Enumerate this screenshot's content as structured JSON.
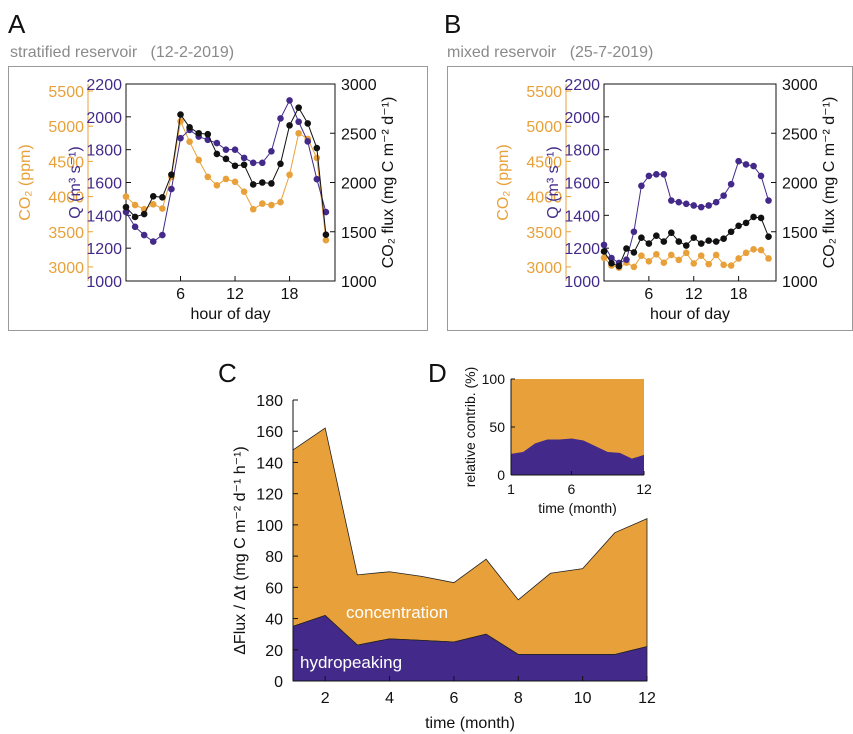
{
  "colors": {
    "co2": "#e8a13a",
    "q": "#432a8a",
    "flux": "#111111",
    "frame": "#9a9a9a",
    "subtitle": "#8a8a8a"
  },
  "labels": {
    "A": "A",
    "B": "B",
    "C": "C",
    "D": "D",
    "A_subtitle": "stratified reservoir   (12-2-2019)",
    "B_subtitle": "mixed reservoir   (25-7-2019)",
    "co2_axis": "CO₂ (ppm)",
    "q_axis": "Q (m³ s⁻¹)",
    "flux_axis": "CO₂ flux (mg C m⁻² d⁻¹)",
    "hour_axis": "hour of day",
    "c_yaxis": "ΔFlux / Δt  (mg C m⁻² d⁻¹ h⁻¹)",
    "c_xaxis": "time (month)",
    "concentration": "concentration",
    "hydropeaking": "hydropeaking",
    "d_yaxis": "relative contrib. (%)",
    "d_xaxis": "time (month)"
  },
  "chart_data": [
    {
      "panel": "A",
      "type": "line",
      "title": "stratified reservoir   (12-2-2019)",
      "xlabel": "hour of day",
      "xlim": [
        0,
        23
      ],
      "xticks": [
        6,
        12,
        18
      ],
      "axes": [
        {
          "label": "CO₂ (ppm)",
          "ylim": [
            2800,
            5600
          ],
          "ticks": [
            3000,
            3500,
            4000,
            4500,
            5000,
            5500
          ]
        },
        {
          "label": "Q (m³ s⁻¹)",
          "ylim": [
            1000,
            2200
          ],
          "ticks": [
            1000,
            1200,
            1400,
            1600,
            1800,
            2000,
            2200
          ]
        },
        {
          "label": "CO₂ flux (mg C m⁻² d⁻¹)",
          "ylim": [
            1000,
            3000
          ],
          "ticks": [
            1000,
            1500,
            2000,
            2500,
            3000
          ]
        }
      ],
      "x": [
        0,
        1,
        2,
        3,
        4,
        5,
        6,
        7,
        8,
        9,
        10,
        11,
        12,
        13,
        14,
        15,
        16,
        17,
        18,
        19,
        20,
        21,
        22
      ],
      "series": [
        {
          "name": "CO2",
          "axis": 0,
          "values": [
            4000,
            3880,
            3820,
            3890,
            3830,
            4280,
            5070,
            4780,
            4520,
            4280,
            4160,
            4250,
            4210,
            4070,
            3820,
            3900,
            3880,
            3920,
            4310,
            4900,
            4820,
            4550,
            3380
          ]
        },
        {
          "name": "Q",
          "axis": 1,
          "values": [
            1420,
            1330,
            1280,
            1240,
            1280,
            1560,
            1870,
            1920,
            1880,
            1860,
            1840,
            1800,
            1800,
            1750,
            1720,
            1720,
            1790,
            1990,
            2100,
            1970,
            1850,
            1620,
            1420
          ]
        },
        {
          "name": "flux",
          "axis": 2,
          "values": [
            1750,
            1650,
            1680,
            1860,
            1850,
            2080,
            2690,
            2560,
            2500,
            2490,
            2290,
            2240,
            2170,
            2180,
            1980,
            2000,
            1990,
            2190,
            2580,
            2760,
            2600,
            2350,
            1470
          ]
        }
      ]
    },
    {
      "panel": "B",
      "type": "line",
      "title": "mixed reservoir   (25-7-2019)",
      "xlabel": "hour of day",
      "xlim": [
        0,
        23
      ],
      "xticks": [
        6,
        12,
        18
      ],
      "axes": [
        {
          "label": "CO₂ (ppm)",
          "ylim": [
            2800,
            5600
          ],
          "ticks": [
            3000,
            3500,
            4000,
            4500,
            5000,
            5500
          ]
        },
        {
          "label": "Q (m³ s⁻¹)",
          "ylim": [
            1000,
            2200
          ],
          "ticks": [
            1000,
            1200,
            1400,
            1600,
            1800,
            2000,
            2200
          ]
        },
        {
          "label": "CO₂ flux (mg C m⁻² d⁻¹)",
          "ylim": [
            1000,
            3000
          ],
          "ticks": [
            1000,
            1500,
            2000,
            2500,
            3000
          ]
        }
      ],
      "x": [
        0,
        1,
        2,
        3,
        4,
        5,
        6,
        7,
        8,
        9,
        10,
        11,
        12,
        13,
        14,
        15,
        16,
        17,
        18,
        19,
        20,
        21,
        22
      ],
      "series": [
        {
          "name": "CO2",
          "axis": 0,
          "values": [
            3130,
            3020,
            2990,
            3060,
            3000,
            3160,
            3080,
            3180,
            3060,
            3170,
            3100,
            3200,
            3050,
            3160,
            3040,
            3170,
            3030,
            3020,
            3120,
            3200,
            3250,
            3240,
            3120
          ]
        },
        {
          "name": "Q",
          "axis": 1,
          "values": [
            1220,
            1140,
            1110,
            1130,
            1300,
            1580,
            1640,
            1650,
            1650,
            1490,
            1480,
            1470,
            1460,
            1450,
            1460,
            1480,
            1520,
            1590,
            1730,
            1710,
            1700,
            1640,
            1490
          ]
        },
        {
          "name": "flux",
          "axis": 2,
          "values": [
            1300,
            1180,
            1150,
            1330,
            1290,
            1440,
            1380,
            1460,
            1400,
            1490,
            1400,
            1360,
            1440,
            1380,
            1410,
            1400,
            1430,
            1500,
            1560,
            1590,
            1650,
            1640,
            1450
          ]
        }
      ]
    },
    {
      "panel": "C",
      "type": "area",
      "xlabel": "time (month)",
      "ylabel": "ΔFlux / Δt  (mg C m⁻² d⁻¹ h⁻¹)",
      "xlim": [
        1,
        12
      ],
      "ylim": [
        0,
        180
      ],
      "xticks": [
        2,
        4,
        6,
        8,
        10,
        12
      ],
      "yticks": [
        0,
        20,
        40,
        60,
        80,
        100,
        120,
        140,
        160,
        180
      ],
      "x": [
        1,
        2,
        3,
        4,
        5,
        6,
        7,
        8,
        9,
        10,
        11,
        12
      ],
      "series": [
        {
          "name": "hydropeaking",
          "values": [
            35,
            42,
            23,
            27,
            26,
            25,
            30,
            17,
            17,
            17,
            17,
            22
          ]
        },
        {
          "name": "concentration",
          "values": [
            113,
            120,
            45,
            43,
            41,
            38,
            48,
            35,
            52,
            55,
            78,
            82
          ]
        }
      ],
      "total": [
        148,
        162,
        68,
        70,
        67,
        63,
        78,
        52,
        69,
        72,
        95,
        104
      ]
    },
    {
      "panel": "D",
      "type": "area",
      "xlabel": "time (month)",
      "ylabel": "relative contrib. (%)",
      "xlim": [
        1,
        12
      ],
      "ylim": [
        0,
        100
      ],
      "xticks": [
        1,
        6,
        12
      ],
      "yticks": [
        0,
        50,
        100
      ],
      "x": [
        1,
        2,
        3,
        4,
        5,
        6,
        7,
        8,
        9,
        10,
        11,
        12
      ],
      "series": [
        {
          "name": "hydropeaking",
          "values": [
            22,
            24,
            33,
            37,
            37,
            38,
            36,
            30,
            24,
            23,
            17,
            21
          ]
        },
        {
          "name": "concentration",
          "values": [
            78,
            76,
            67,
            63,
            63,
            62,
            64,
            70,
            76,
            77,
            83,
            79
          ]
        }
      ]
    }
  ]
}
